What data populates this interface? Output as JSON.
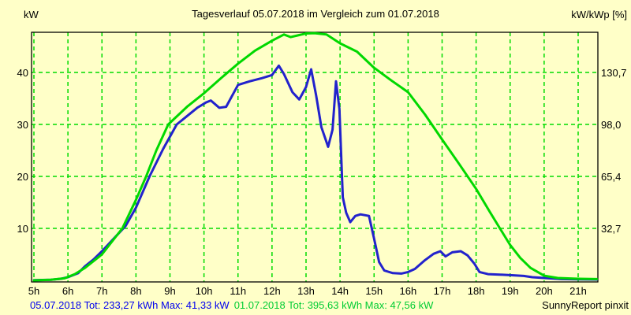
{
  "title": "Tagesverlauf 05.07.2018 im Vergleich zum 01.07.2018",
  "left_axis_label": "kW",
  "right_axis_label": "kW/kWp [%]",
  "footer": {
    "day1": "05.07.2018 Tot: 233,27 kWh Max: 41,33 kW",
    "day2": "01.07.2018 Tot: 395,63 kWh Max: 47,56 kW",
    "brand": "SunnyReport pinxit"
  },
  "colors": {
    "background": "#ffffc8",
    "plot_border": "#000000",
    "grid": "#00dc00",
    "series_blue": "#2222cc",
    "series_green": "#00d800",
    "footer_blue": "#0000ee",
    "footer_green": "#00cc33",
    "text": "#000000"
  },
  "chart_data": {
    "type": "line",
    "title": "Tagesverlauf 05.07.2018 im Vergleich zum 01.07.2018",
    "xlabel": "",
    "ylabel_left": "kW",
    "ylabel_right": "kW/kWp [%]",
    "xlim": [
      5,
      21.6
    ],
    "ylim": [
      0,
      47.7
    ],
    "grid": true,
    "legend_position": "none",
    "x_ticks": [
      {
        "label": "5h",
        "hour": 5
      },
      {
        "label": "6h",
        "hour": 6
      },
      {
        "label": "7h",
        "hour": 7
      },
      {
        "label": "8h",
        "hour": 8
      },
      {
        "label": "9h",
        "hour": 9
      },
      {
        "label": "10h",
        "hour": 10
      },
      {
        "label": "11h",
        "hour": 11
      },
      {
        "label": "12h",
        "hour": 12
      },
      {
        "label": "13h",
        "hour": 13
      },
      {
        "label": "14h",
        "hour": 14
      },
      {
        "label": "15h",
        "hour": 15
      },
      {
        "label": "16h",
        "hour": 16
      },
      {
        "label": "17h",
        "hour": 17
      },
      {
        "label": "18h",
        "hour": 18
      },
      {
        "label": "19h",
        "hour": 19
      },
      {
        "label": "20h",
        "hour": 20
      },
      {
        "label": "21h",
        "hour": 21
      }
    ],
    "y_ticks_left": [
      {
        "label": "40",
        "kw": 40
      },
      {
        "label": "30",
        "kw": 30
      },
      {
        "label": "20",
        "kw": 20
      },
      {
        "label": "10",
        "kw": 10
      }
    ],
    "y_ticks_right": [
      {
        "label": "130,7",
        "kw": 40
      },
      {
        "label": "98,0",
        "kw": 30
      },
      {
        "label": "65,4",
        "kw": 20
      },
      {
        "label": "32,7",
        "kw": 10
      }
    ],
    "series": [
      {
        "name": "05.07.2018",
        "total_kwh": "233,27",
        "max_kw": "41,33",
        "color_key": "series_blue",
        "points": [
          [
            5.0,
            0.05
          ],
          [
            5.5,
            0.1
          ],
          [
            5.8,
            0.3
          ],
          [
            6.0,
            0.6
          ],
          [
            6.3,
            1.4
          ],
          [
            6.5,
            2.7
          ],
          [
            6.75,
            4.0
          ],
          [
            7.0,
            5.6
          ],
          [
            7.3,
            7.7
          ],
          [
            7.7,
            10.5
          ],
          [
            8.0,
            14.0
          ],
          [
            8.4,
            20.0
          ],
          [
            8.8,
            25.3
          ],
          [
            9.2,
            30.0
          ],
          [
            9.5,
            31.6
          ],
          [
            9.8,
            33.2
          ],
          [
            10.05,
            34.2
          ],
          [
            10.2,
            34.6
          ],
          [
            10.45,
            33.2
          ],
          [
            10.65,
            33.4
          ],
          [
            11.0,
            37.6
          ],
          [
            11.35,
            38.3
          ],
          [
            11.7,
            38.9
          ],
          [
            12.0,
            39.5
          ],
          [
            12.2,
            41.3
          ],
          [
            12.35,
            39.7
          ],
          [
            12.6,
            36.2
          ],
          [
            12.8,
            34.8
          ],
          [
            13.0,
            37.2
          ],
          [
            13.15,
            40.6
          ],
          [
            13.3,
            35.5
          ],
          [
            13.45,
            29.5
          ],
          [
            13.65,
            25.7
          ],
          [
            13.78,
            29.0
          ],
          [
            13.88,
            38.3
          ],
          [
            13.98,
            33.0
          ],
          [
            14.08,
            16.0
          ],
          [
            14.18,
            13.0
          ],
          [
            14.3,
            11.2
          ],
          [
            14.45,
            12.4
          ],
          [
            14.6,
            12.7
          ],
          [
            14.85,
            12.4
          ],
          [
            15.0,
            8.0
          ],
          [
            15.15,
            3.5
          ],
          [
            15.3,
            1.9
          ],
          [
            15.55,
            1.4
          ],
          [
            15.8,
            1.3
          ],
          [
            16.0,
            1.6
          ],
          [
            16.2,
            2.2
          ],
          [
            16.5,
            3.9
          ],
          [
            16.75,
            5.1
          ],
          [
            16.95,
            5.6
          ],
          [
            17.1,
            4.6
          ],
          [
            17.3,
            5.4
          ],
          [
            17.55,
            5.6
          ],
          [
            17.75,
            4.8
          ],
          [
            17.95,
            3.2
          ],
          [
            18.1,
            1.6
          ],
          [
            18.35,
            1.2
          ],
          [
            18.7,
            1.1
          ],
          [
            19.0,
            1.0
          ],
          [
            19.4,
            0.85
          ],
          [
            19.65,
            0.6
          ],
          [
            20.0,
            0.45
          ],
          [
            20.5,
            0.25
          ],
          [
            21.0,
            0.2
          ],
          [
            21.55,
            0.15
          ]
        ]
      },
      {
        "name": "01.07.2018",
        "total_kwh": "395,63",
        "max_kw": "47,56",
        "color_key": "series_green",
        "points": [
          [
            5.0,
            0.0
          ],
          [
            5.5,
            0.1
          ],
          [
            5.9,
            0.4
          ],
          [
            6.2,
            1.2
          ],
          [
            6.5,
            2.4
          ],
          [
            7.0,
            5.0
          ],
          [
            7.6,
            10.0
          ],
          [
            8.0,
            15.5
          ],
          [
            8.3,
            20.0
          ],
          [
            8.6,
            25.0
          ],
          [
            8.95,
            30.0
          ],
          [
            9.5,
            33.4
          ],
          [
            10.0,
            36.0
          ],
          [
            10.5,
            38.9
          ],
          [
            11.0,
            41.7
          ],
          [
            11.5,
            44.2
          ],
          [
            12.0,
            46.1
          ],
          [
            12.35,
            47.3
          ],
          [
            12.55,
            46.8
          ],
          [
            12.8,
            47.2
          ],
          [
            13.0,
            47.5
          ],
          [
            13.25,
            47.56
          ],
          [
            13.6,
            47.3
          ],
          [
            14.0,
            45.6
          ],
          [
            14.5,
            44.0
          ],
          [
            15.0,
            40.9
          ],
          [
            15.5,
            38.5
          ],
          [
            16.0,
            36.2
          ],
          [
            16.5,
            31.9
          ],
          [
            17.0,
            27.1
          ],
          [
            17.5,
            22.4
          ],
          [
            18.0,
            17.6
          ],
          [
            18.4,
            13.2
          ],
          [
            18.7,
            10.0
          ],
          [
            19.0,
            6.8
          ],
          [
            19.3,
            4.3
          ],
          [
            19.6,
            2.4
          ],
          [
            20.0,
            0.9
          ],
          [
            20.4,
            0.45
          ],
          [
            21.0,
            0.3
          ],
          [
            21.55,
            0.25
          ]
        ]
      }
    ]
  }
}
